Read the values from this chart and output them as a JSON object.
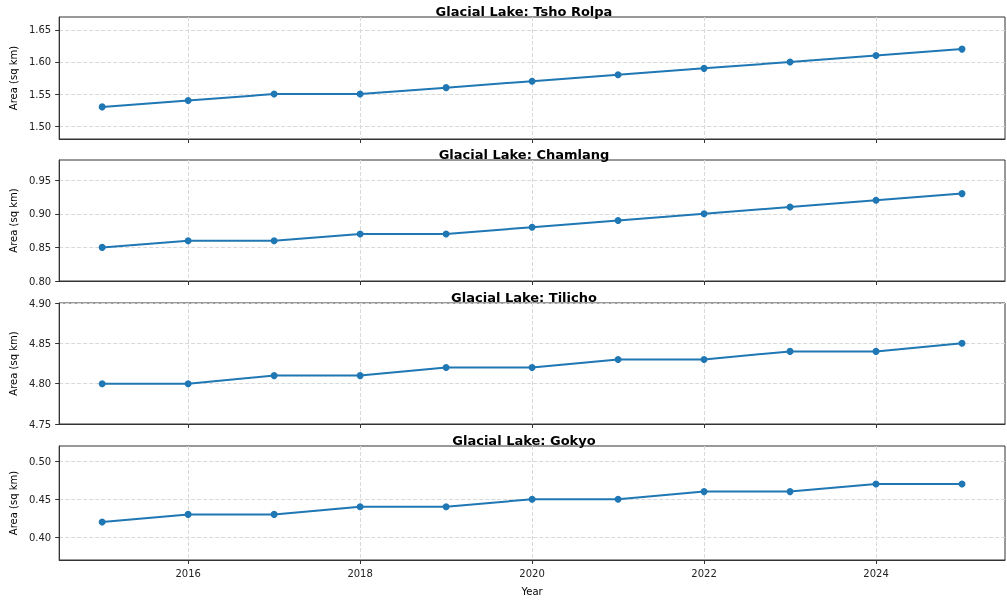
{
  "chart_data": [
    {
      "type": "line",
      "title": "Glacial Lake: Tsho Rolpa",
      "ylabel": "Area (sq km)",
      "x": [
        2015,
        2016,
        2017,
        2018,
        2019,
        2020,
        2021,
        2022,
        2023,
        2024,
        2025
      ],
      "series": [
        {
          "color": "#1f77b4",
          "values": [
            1.53,
            1.54,
            1.55,
            1.55,
            1.56,
            1.57,
            1.58,
            1.59,
            1.6,
            1.61,
            1.62
          ]
        }
      ],
      "xlim": [
        2014.5,
        2025.5
      ],
      "xticks": [
        2016,
        2018,
        2020,
        2022,
        2024
      ],
      "ylim": [
        1.48,
        1.67
      ],
      "yticks": [
        {
          "value": 1.5,
          "label": "1.50"
        },
        {
          "value": 1.55,
          "label": "1.55"
        },
        {
          "value": 1.6,
          "label": "1.60"
        },
        {
          "value": 1.65,
          "label": "1.65"
        }
      ],
      "tick_labels": "y",
      "grid": true,
      "marker": "circle",
      "line_style": "solid"
    },
    {
      "type": "line",
      "title": "Glacial Lake: Chamlang",
      "ylabel": "Area (sq km)",
      "x": [
        2015,
        2016,
        2017,
        2018,
        2019,
        2020,
        2021,
        2022,
        2023,
        2024,
        2025
      ],
      "series": [
        {
          "color": "#1f77b4",
          "values": [
            0.85,
            0.86,
            0.86,
            0.87,
            0.87,
            0.88,
            0.89,
            0.9,
            0.91,
            0.92,
            0.93
          ]
        }
      ],
      "xlim": [
        2014.5,
        2025.5
      ],
      "xticks": [
        2016,
        2018,
        2020,
        2022,
        2024
      ],
      "ylim": [
        0.8,
        0.98
      ],
      "yticks": [
        {
          "value": 0.8,
          "label": "0.80"
        },
        {
          "value": 0.85,
          "label": "0.85"
        },
        {
          "value": 0.9,
          "label": "0.90"
        },
        {
          "value": 0.95,
          "label": "0.95"
        }
      ],
      "tick_labels": "y",
      "grid": true,
      "marker": "circle",
      "line_style": "solid"
    },
    {
      "type": "line",
      "title": "Glacial Lake: Tilicho",
      "ylabel": "Area (sq km)",
      "x": [
        2015,
        2016,
        2017,
        2018,
        2019,
        2020,
        2021,
        2022,
        2023,
        2024,
        2025
      ],
      "series": [
        {
          "color": "#1f77b4",
          "values": [
            4.8,
            4.8,
            4.81,
            4.81,
            4.82,
            4.82,
            4.83,
            4.83,
            4.84,
            4.84,
            4.85
          ]
        }
      ],
      "xlim": [
        2014.5,
        2025.5
      ],
      "xticks": [
        2016,
        2018,
        2020,
        2022,
        2024
      ],
      "ylim": [
        4.75,
        4.9
      ],
      "yticks": [
        {
          "value": 4.75,
          "label": "4.75"
        },
        {
          "value": 4.8,
          "label": "4.80"
        },
        {
          "value": 4.85,
          "label": "4.85"
        },
        {
          "value": 4.9,
          "label": "4.90"
        }
      ],
      "tick_labels": "y",
      "grid": true,
      "marker": "circle",
      "line_style": "solid"
    },
    {
      "type": "line",
      "title": "Glacial Lake: Gokyo",
      "ylabel": "Area (sq km)",
      "xlabel": "Year",
      "x": [
        2015,
        2016,
        2017,
        2018,
        2019,
        2020,
        2021,
        2022,
        2023,
        2024,
        2025
      ],
      "series": [
        {
          "color": "#1f77b4",
          "values": [
            0.42,
            0.43,
            0.43,
            0.44,
            0.44,
            0.45,
            0.45,
            0.46,
            0.46,
            0.47,
            0.47
          ]
        }
      ],
      "xlim": [
        2014.5,
        2025.5
      ],
      "xticks": [
        2016,
        2018,
        2020,
        2022,
        2024
      ],
      "ylim": [
        0.37,
        0.52
      ],
      "yticks": [
        {
          "value": 0.4,
          "label": "0.40"
        },
        {
          "value": 0.45,
          "label": "0.45"
        },
        {
          "value": 0.5,
          "label": "0.50"
        }
      ],
      "grid": true,
      "marker": "circle",
      "line_style": "solid"
    }
  ]
}
